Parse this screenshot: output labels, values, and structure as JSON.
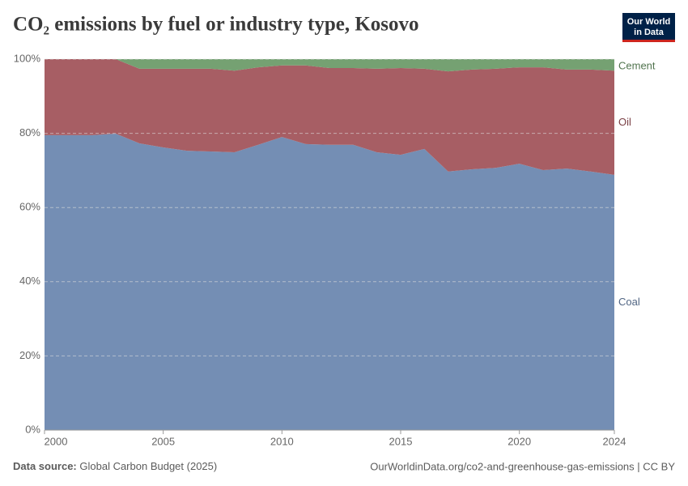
{
  "chart_data": {
    "type": "stacked-area",
    "title": "CO₂ emissions by fuel or industry type, Kosovo",
    "logo": [
      "Our World",
      "in Data"
    ],
    "source_label": "Data source:",
    "source": "Global Carbon Budget (2025)",
    "url": "OurWorldinData.org/co2-and-greenhouse-gas-emissions | CC BY",
    "x": [
      2000,
      2001,
      2002,
      2003,
      2004,
      2005,
      2006,
      2007,
      2008,
      2009,
      2010,
      2011,
      2012,
      2013,
      2014,
      2015,
      2016,
      2017,
      2018,
      2019,
      2020,
      2021,
      2022,
      2023,
      2024
    ],
    "xlim": [
      2000,
      2024
    ],
    "xticks": [
      2000,
      2005,
      2010,
      2015,
      2020,
      2024
    ],
    "ylim": [
      0,
      100
    ],
    "yticks": [
      {
        "value": 0,
        "label": "0%"
      },
      {
        "value": 20,
        "label": "20%"
      },
      {
        "value": 40,
        "label": "40%"
      },
      {
        "value": 60,
        "label": "60%"
      },
      {
        "value": 80,
        "label": "80%"
      },
      {
        "value": 100,
        "label": "100%"
      }
    ],
    "grid": true,
    "series": [
      {
        "name": "Coal",
        "color": "#6d88b0",
        "values": [
          79.5,
          79.5,
          79.5,
          79.9,
          77.3,
          76.2,
          75.3,
          75.1,
          74.9,
          76.9,
          79.0,
          77.1,
          76.9,
          76.9,
          74.9,
          74.2,
          75.8,
          69.7,
          70.3,
          70.7,
          71.8,
          70.1,
          70.5,
          69.7,
          68.8
        ]
      },
      {
        "name": "Oil",
        "color": "#a2555c",
        "values": [
          20.5,
          20.5,
          20.5,
          20.1,
          20.1,
          21.2,
          22.1,
          22.3,
          22.0,
          20.9,
          19.3,
          21.2,
          20.7,
          20.7,
          22.5,
          23.4,
          21.6,
          27.0,
          26.9,
          26.7,
          26.0,
          27.7,
          26.7,
          27.5,
          28.1
        ]
      },
      {
        "name": "Cement",
        "color": "#6e9c6a",
        "values": [
          0,
          0,
          0,
          0,
          2.6,
          2.6,
          2.6,
          2.6,
          3.1,
          2.2,
          1.7,
          1.7,
          2.4,
          2.4,
          2.6,
          2.4,
          2.6,
          3.3,
          2.8,
          2.6,
          2.2,
          2.2,
          2.8,
          2.8,
          3.1
        ]
      }
    ]
  }
}
